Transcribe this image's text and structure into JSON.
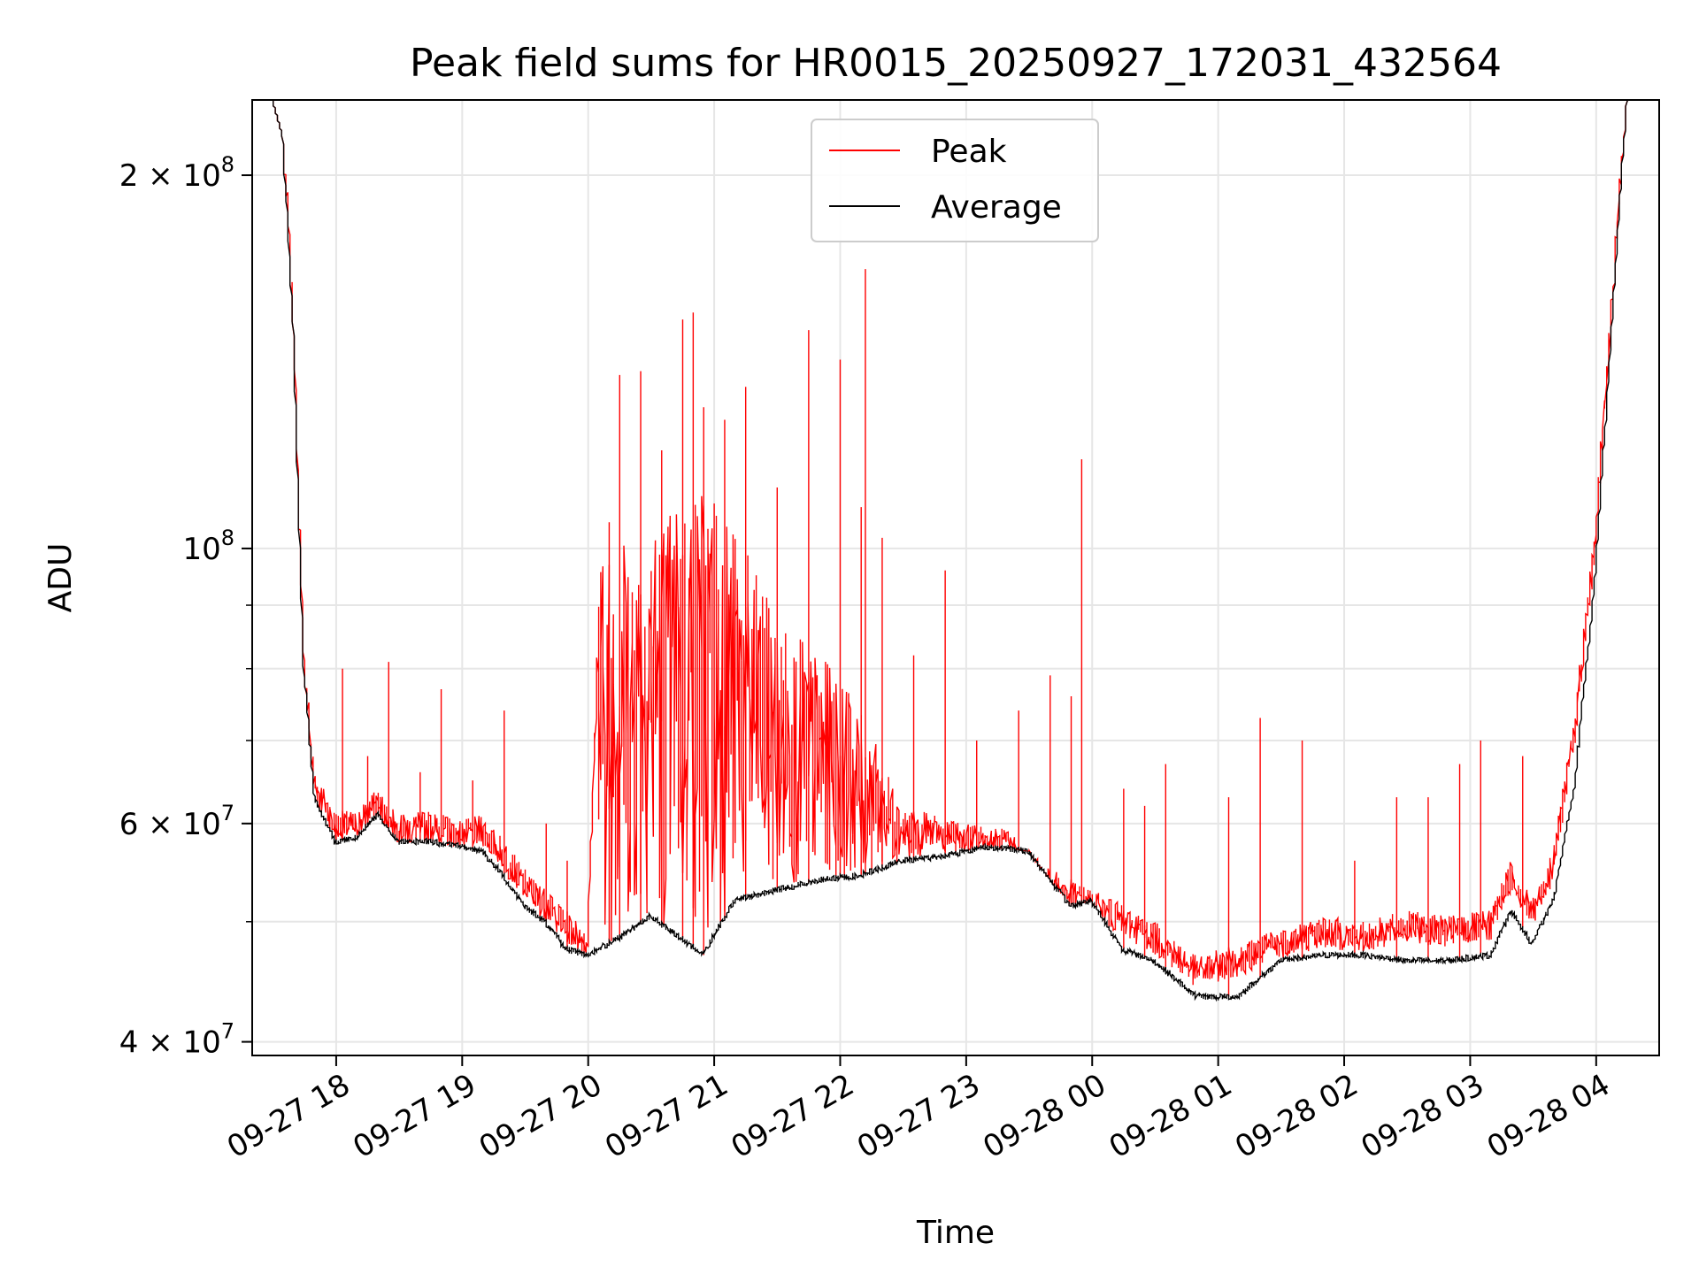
{
  "chart_data": {
    "type": "line",
    "title": "Peak field sums for HR0015_20250927_172031_432564",
    "xlabel": "Time",
    "ylabel": "ADU",
    "y_scale": "log",
    "ylim": [
      39000000,
      230000000
    ],
    "xlim": [
      "2025-09-27 17:20",
      "2025-09-28 04:30"
    ],
    "grid": true,
    "legend_position": "upper center",
    "x_ticks": [
      "09-27 18",
      "09-27 19",
      "09-27 20",
      "09-27 21",
      "09-27 22",
      "09-27 23",
      "09-28 00",
      "09-28 01",
      "09-28 02",
      "09-28 03",
      "09-28 04"
    ],
    "y_tick_labels": [
      {
        "value": 200000000,
        "mantissa": "2 × 10",
        "exp": "8"
      },
      {
        "value": 100000000,
        "mantissa": "10",
        "exp": "8"
      },
      {
        "value": 60000000,
        "mantissa": "6 × 10",
        "exp": "7"
      },
      {
        "value": 40000000,
        "mantissa": "4 × 10",
        "exp": "7"
      }
    ],
    "series": [
      {
        "name": "Peak",
        "color": "#ff0000",
        "x": [
          "2025-09-27 17:20",
          "2025-09-27 17:30",
          "2025-09-27 17:35",
          "2025-09-27 17:40",
          "2025-09-27 17:45",
          "2025-09-27 17:50",
          "2025-09-27 18:00",
          "2025-09-27 18:10",
          "2025-09-27 18:20",
          "2025-09-27 18:30",
          "2025-09-27 18:45",
          "2025-09-27 19:00",
          "2025-09-27 19:10",
          "2025-09-27 19:20",
          "2025-09-27 19:30",
          "2025-09-27 19:40",
          "2025-09-27 19:50",
          "2025-09-27 20:00",
          "2025-09-27 20:05",
          "2025-09-27 20:30",
          "2025-09-27 21:00",
          "2025-09-27 21:30",
          "2025-09-27 22:00",
          "2025-09-27 22:30",
          "2025-09-27 22:50",
          "2025-09-27 23:20",
          "2025-09-27 23:40",
          "2025-09-28 00:00",
          "2025-09-28 00:30",
          "2025-09-28 00:50",
          "2025-09-28 01:10",
          "2025-09-28 01:30",
          "2025-09-28 01:50",
          "2025-09-28 02:10",
          "2025-09-28 02:30",
          "2025-09-28 02:50",
          "2025-09-28 03:10",
          "2025-09-28 03:20",
          "2025-09-28 03:30",
          "2025-09-28 03:40",
          "2025-09-28 03:50",
          "2025-09-28 04:00",
          "2025-09-28 04:15",
          "2025-09-28 04:30"
        ],
        "values": [
          230000000,
          230000000,
          215000000,
          150000000,
          80000000,
          64000000,
          59000000,
          59000000,
          61500000,
          58500000,
          59000000,
          58000000,
          58500000,
          56000000,
          53000000,
          51000000,
          49000000,
          47500000,
          80000000,
          85000000,
          90000000,
          75000000,
          70000000,
          60000000,
          58000000,
          57000000,
          53000000,
          51000000,
          48000000,
          45000000,
          46000000,
          47500000,
          48500000,
          48000000,
          49000000,
          48500000,
          49000000,
          54000000,
          50000000,
          55000000,
          70000000,
          100000000,
          230000000,
          230000000
        ],
        "spikes": [
          [
            "2025-09-27 18:03",
            80000000
          ],
          [
            "2025-09-27 18:15",
            68000000
          ],
          [
            "2025-09-27 18:25",
            81000000
          ],
          [
            "2025-09-27 18:40",
            66000000
          ],
          [
            "2025-09-27 18:50",
            77000000
          ],
          [
            "2025-09-27 19:05",
            65000000
          ],
          [
            "2025-09-27 19:20",
            74000000
          ],
          [
            "2025-09-27 19:40",
            60000000
          ],
          [
            "2025-09-27 19:50",
            56000000
          ],
          [
            "2025-09-27 20:10",
            105000000
          ],
          [
            "2025-09-27 20:15",
            138000000
          ],
          [
            "2025-09-27 20:25",
            139000000
          ],
          [
            "2025-09-27 20:35",
            120000000
          ],
          [
            "2025-09-27 20:45",
            153000000
          ],
          [
            "2025-09-27 20:50",
            155000000
          ],
          [
            "2025-09-27 20:55",
            130000000
          ],
          [
            "2025-09-27 21:05",
            127000000
          ],
          [
            "2025-09-27 21:15",
            135000000
          ],
          [
            "2025-09-27 21:30",
            112000000
          ],
          [
            "2025-09-27 21:45",
            150000000
          ],
          [
            "2025-09-27 22:00",
            142000000
          ],
          [
            "2025-09-27 22:10",
            108000000
          ],
          [
            "2025-09-27 22:12",
            168000000
          ],
          [
            "2025-09-27 22:20",
            102000000
          ],
          [
            "2025-09-27 22:35",
            82000000
          ],
          [
            "2025-09-27 22:50",
            96000000
          ],
          [
            "2025-09-27 23:05",
            70000000
          ],
          [
            "2025-09-27 23:25",
            74000000
          ],
          [
            "2025-09-27 23:40",
            79000000
          ],
          [
            "2025-09-27 23:50",
            76000000
          ],
          [
            "2025-09-27 23:55",
            118000000
          ],
          [
            "2025-09-28 00:15",
            64000000
          ],
          [
            "2025-09-28 00:25",
            62000000
          ],
          [
            "2025-09-28 00:35",
            67000000
          ],
          [
            "2025-09-28 01:05",
            63000000
          ],
          [
            "2025-09-28 01:20",
            73000000
          ],
          [
            "2025-09-28 01:40",
            70000000
          ],
          [
            "2025-09-28 02:05",
            56000000
          ],
          [
            "2025-09-28 02:25",
            63000000
          ],
          [
            "2025-09-28 02:40",
            63000000
          ],
          [
            "2025-09-28 02:55",
            67000000
          ],
          [
            "2025-09-28 03:05",
            70000000
          ],
          [
            "2025-09-28 03:25",
            68000000
          ]
        ]
      },
      {
        "name": "Average",
        "color": "#000000",
        "x": [
          "2025-09-27 17:20",
          "2025-09-27 17:30",
          "2025-09-27 17:35",
          "2025-09-27 17:40",
          "2025-09-27 17:45",
          "2025-09-27 17:50",
          "2025-09-27 18:00",
          "2025-09-27 18:10",
          "2025-09-27 18:20",
          "2025-09-27 18:30",
          "2025-09-27 18:45",
          "2025-09-27 19:00",
          "2025-09-27 19:10",
          "2025-09-27 19:20",
          "2025-09-27 19:30",
          "2025-09-27 19:40",
          "2025-09-27 19:50",
          "2025-09-27 20:00",
          "2025-09-27 20:15",
          "2025-09-27 20:30",
          "2025-09-27 20:45",
          "2025-09-27 20:55",
          "2025-09-27 21:10",
          "2025-09-27 21:30",
          "2025-09-27 21:50",
          "2025-09-27 22:10",
          "2025-09-27 22:30",
          "2025-09-27 22:50",
          "2025-09-27 23:10",
          "2025-09-27 23:30",
          "2025-09-27 23:50",
          "2025-09-28 00:00",
          "2025-09-28 00:15",
          "2025-09-28 00:30",
          "2025-09-28 00:50",
          "2025-09-28 01:10",
          "2025-09-28 01:30",
          "2025-09-28 01:50",
          "2025-09-28 02:10",
          "2025-09-28 02:30",
          "2025-09-28 02:50",
          "2025-09-28 03:10",
          "2025-09-28 03:20",
          "2025-09-28 03:30",
          "2025-09-28 03:40",
          "2025-09-28 03:50",
          "2025-09-28 04:00",
          "2025-09-28 04:15",
          "2025-09-28 04:30"
        ],
        "values": [
          230000000,
          230000000,
          215000000,
          150000000,
          80000000,
          63000000,
          58000000,
          58500000,
          61000000,
          58000000,
          58000000,
          57500000,
          57000000,
          54500000,
          51500000,
          50000000,
          47500000,
          47000000,
          48500000,
          50500000,
          48500000,
          47000000,
          52000000,
          53000000,
          54000000,
          54500000,
          56000000,
          56500000,
          57500000,
          57000000,
          51500000,
          52000000,
          47500000,
          46500000,
          43500000,
          43500000,
          46500000,
          47000000,
          47000000,
          46500000,
          46500000,
          47000000,
          51000000,
          48000000,
          52000000,
          64000000,
          95000000,
          230000000,
          230000000
        ]
      }
    ]
  }
}
